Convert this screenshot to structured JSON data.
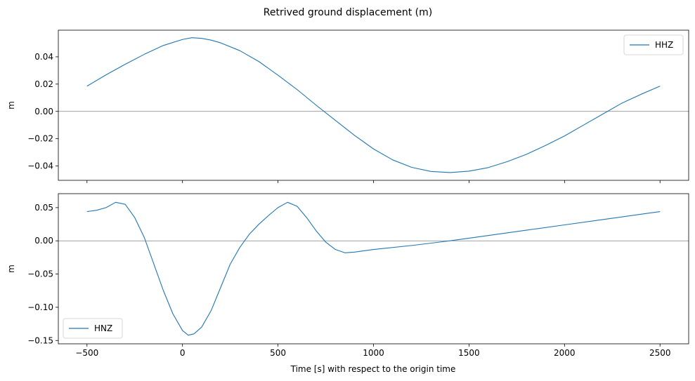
{
  "chart_data": {
    "type": "line",
    "title": "Retrived ground displacement (m)",
    "xlabel": "Time [s] with respect to the origin time",
    "xlim": [
      -650,
      2650
    ],
    "xticks": [
      -500,
      0,
      500,
      1000,
      1500,
      2000,
      2500
    ],
    "xtick_labels": [
      "−500",
      "0",
      "500",
      "1000",
      "1500",
      "2000",
      "2500"
    ],
    "color": "#1f77b4",
    "subplots": [
      {
        "name": "HHZ",
        "ylabel": "m",
        "ylim": [
          -0.0505,
          0.0595
        ],
        "yticks": [
          -0.04,
          -0.02,
          0.0,
          0.02,
          0.04
        ],
        "ytick_labels": [
          "−0.04",
          "−0.02",
          "0.00",
          "0.02",
          "0.04"
        ],
        "legend": {
          "label": "HHZ",
          "loc": "upper right"
        },
        "zero_line": true,
        "series": {
          "name": "HHZ",
          "x": [
            -500,
            -400,
            -300,
            -200,
            -100,
            0,
            50,
            100,
            150,
            200,
            300,
            400,
            500,
            600,
            700,
            800,
            900,
            1000,
            1100,
            1200,
            1300,
            1400,
            1500,
            1600,
            1700,
            1800,
            1900,
            2000,
            2100,
            2200,
            2300,
            2400,
            2500
          ],
          "y": [
            0.0185,
            0.0268,
            0.0345,
            0.0418,
            0.0483,
            0.0527,
            0.054,
            0.0535,
            0.0522,
            0.0502,
            0.0445,
            0.0365,
            0.0265,
            0.016,
            0.0045,
            -0.0065,
            -0.0175,
            -0.0275,
            -0.0355,
            -0.041,
            -0.044,
            -0.0448,
            -0.0438,
            -0.0412,
            -0.0368,
            -0.0315,
            -0.025,
            -0.018,
            -0.01,
            -0.002,
            0.006,
            0.0125,
            0.0185
          ]
        }
      },
      {
        "name": "HNZ",
        "ylabel": "m",
        "ylim": [
          -0.155,
          0.071
        ],
        "yticks": [
          -0.15,
          -0.1,
          -0.05,
          0.0,
          0.05
        ],
        "ytick_labels": [
          "−0.15",
          "−0.10",
          "−0.05",
          "0.00",
          "0.05"
        ],
        "legend": {
          "label": "HNZ",
          "loc": "lower left"
        },
        "zero_line": true,
        "series": {
          "name": "HNZ",
          "x": [
            -500,
            -450,
            -400,
            -350,
            -300,
            -250,
            -200,
            -150,
            -100,
            -50,
            0,
            30,
            60,
            100,
            150,
            200,
            250,
            300,
            350,
            400,
            450,
            500,
            550,
            600,
            650,
            700,
            750,
            800,
            850,
            900,
            950,
            1000,
            1200,
            1400,
            1600,
            1800,
            2000,
            2200,
            2400,
            2500
          ],
          "y": [
            0.044,
            0.046,
            0.05,
            0.058,
            0.055,
            0.035,
            0.005,
            -0.035,
            -0.075,
            -0.11,
            -0.135,
            -0.142,
            -0.14,
            -0.13,
            -0.105,
            -0.07,
            -0.035,
            -0.01,
            0.01,
            0.025,
            0.038,
            0.05,
            0.058,
            0.052,
            0.035,
            0.015,
            -0.002,
            -0.013,
            -0.018,
            -0.017,
            -0.015,
            -0.013,
            -0.007,
            0.0,
            0.008,
            0.016,
            0.024,
            0.032,
            0.04,
            0.044
          ]
        }
      }
    ]
  }
}
